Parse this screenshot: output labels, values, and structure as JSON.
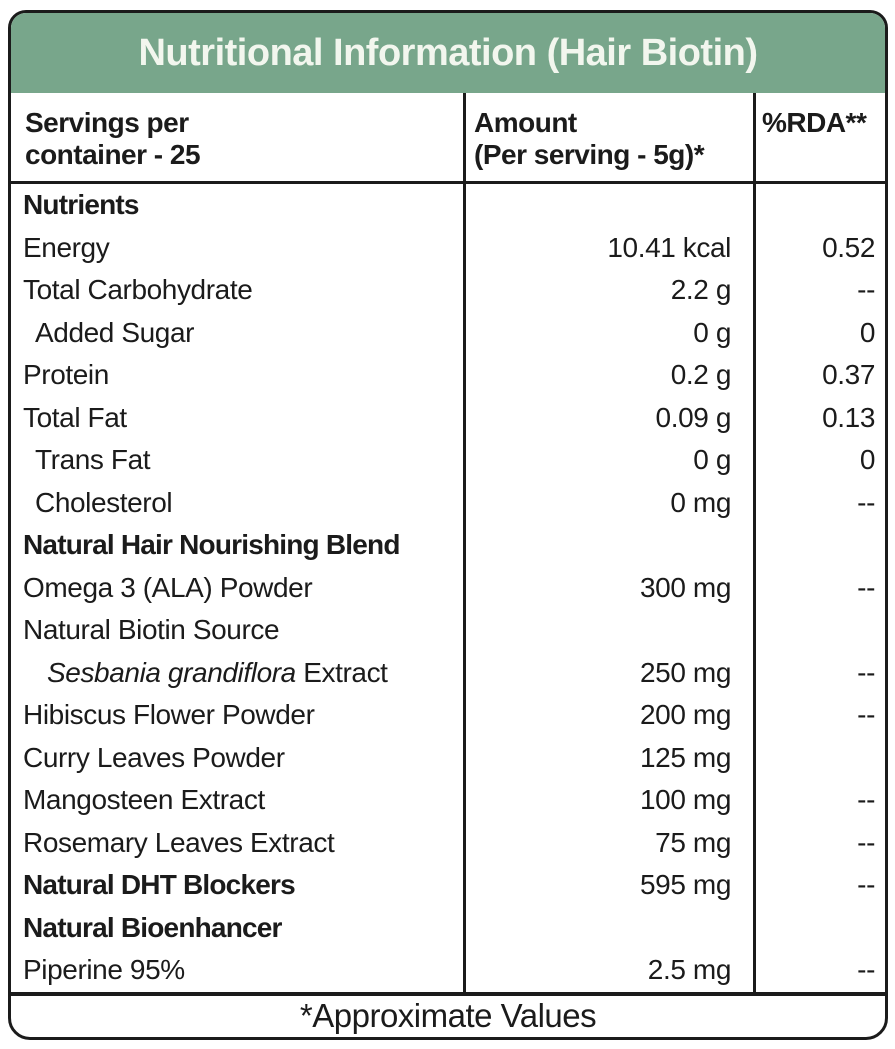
{
  "header": {
    "title": "Nutritional Information (Hair Biotin)",
    "bg_color": "#78a68b",
    "text_color": "#f2f6ee",
    "border_color": "#1b1b1b"
  },
  "table": {
    "columns": {
      "servings_line1": "Servings per",
      "servings_line2": "container - 25",
      "amount_line1": "Amount",
      "amount_line2": "(Per serving - 5g)*",
      "rda": "%RDA**"
    },
    "rows": [
      {
        "label": "Nutrients",
        "bold": true,
        "amount": "",
        "rda": ""
      },
      {
        "label": "Energy",
        "amount": "10.41 kcal",
        "rda": "0.52"
      },
      {
        "label": "Total Carbohydrate",
        "amount": "2.2 g",
        "rda": "--"
      },
      {
        "label": "Added Sugar",
        "indent": 1,
        "amount": "0 g",
        "rda": "0"
      },
      {
        "label": "Protein",
        "amount": "0.2 g",
        "rda": "0.37"
      },
      {
        "label": "Total Fat",
        "amount": "0.09 g",
        "rda": "0.13"
      },
      {
        "label": "Trans Fat",
        "indent": 1,
        "amount": "0 g",
        "rda": "0"
      },
      {
        "label": "Cholesterol",
        "indent": 1,
        "amount": "0 mg",
        "rda": "--"
      },
      {
        "label": "Natural Hair Nourishing Blend",
        "bold": true,
        "amount": "",
        "rda": ""
      },
      {
        "label": "Omega 3 (ALA) Powder",
        "amount": "300 mg",
        "rda": "--"
      },
      {
        "label": "Natural Biotin Source",
        "amount": "",
        "rda": ""
      },
      {
        "italic": "Sesbania grandiflora",
        "label": " Extract",
        "indent": 2,
        "amount": "250 mg",
        "rda": "--"
      },
      {
        "label": "Hibiscus Flower Powder",
        "amount": "200 mg",
        "rda": "--"
      },
      {
        "label": "Curry Leaves Powder",
        "amount": "125 mg",
        "rda": ""
      },
      {
        "label": "Mangosteen Extract",
        "amount": "100 mg",
        "rda": "--"
      },
      {
        "label": "Rosemary Leaves Extract",
        "amount": "75 mg",
        "rda": "--"
      },
      {
        "label": "Natural DHT Blockers",
        "bold": true,
        "amount": "595 mg",
        "rda": "--"
      },
      {
        "label": "Natural Bioenhancer",
        "bold": true,
        "amount": "",
        "rda": ""
      },
      {
        "label": "Piperine 95%",
        "amount": "2.5 mg",
        "rda": "--"
      }
    ]
  },
  "footer": {
    "note": "*Approximate Values"
  }
}
